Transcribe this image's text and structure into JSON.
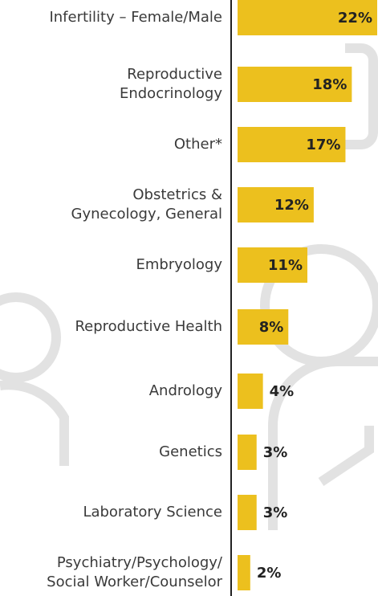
{
  "chart_data": {
    "type": "bar",
    "orientation": "horizontal",
    "color": "#ecc01e",
    "categories": [
      "Infertility – Female/Male",
      "Reproductive\nEndocrinology",
      "Other*",
      "Obstetrics &\nGynecology, General",
      "Embryology",
      "Reproductive Health",
      "Andrology",
      "Genetics",
      "Laboratory Science",
      "Psychiatry/Psychology/\nSocial Worker/Counselor"
    ],
    "values": [
      22,
      18,
      17,
      12,
      11,
      8,
      4,
      3,
      3,
      2
    ],
    "value_labels": [
      "22%",
      "18%",
      "17%",
      "12%",
      "11%",
      "8%",
      "4%",
      "3%",
      "3%",
      "2%"
    ],
    "xlim": [
      0,
      22
    ]
  }
}
